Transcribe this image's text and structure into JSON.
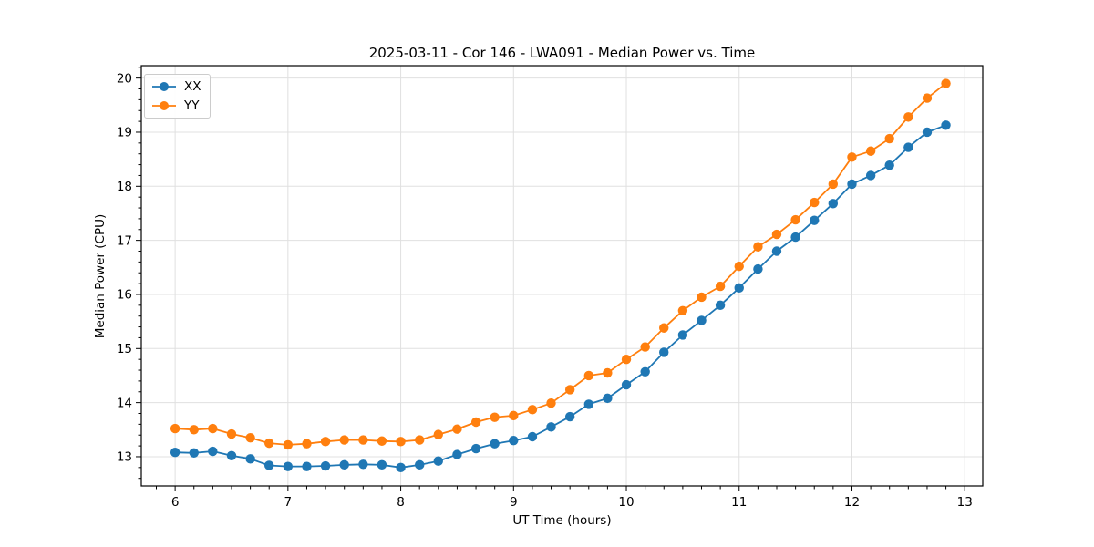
{
  "chart_data": {
    "type": "line",
    "title": "2025-03-11 - Cor 146 - LWA091 - Median Power vs. Time",
    "xlabel": "UT Time (hours)",
    "ylabel": "Median Power (CPU)",
    "xlim": [
      5.7,
      13.16
    ],
    "ylim": [
      12.46,
      20.23
    ],
    "x_major_ticks": [
      6,
      7,
      8,
      9,
      10,
      11,
      12,
      13
    ],
    "y_major_ticks": [
      13,
      14,
      15,
      16,
      17,
      18,
      19,
      20
    ],
    "x_minor_step": 0.1667,
    "y_minor_step": 0.2,
    "grid": true,
    "grid_color": "#e0e0e0",
    "legend_position": "upper-left",
    "marker": "circle",
    "x": [
      6.0,
      6.167,
      6.333,
      6.5,
      6.667,
      6.833,
      7.0,
      7.167,
      7.333,
      7.5,
      7.667,
      7.833,
      8.0,
      8.167,
      8.333,
      8.5,
      8.667,
      8.833,
      9.0,
      9.167,
      9.333,
      9.5,
      9.667,
      9.833,
      10.0,
      10.167,
      10.333,
      10.5,
      10.667,
      10.833,
      11.0,
      11.167,
      11.333,
      11.5,
      11.667,
      11.833,
      12.0,
      12.167,
      12.333,
      12.5,
      12.667,
      12.833
    ],
    "series": [
      {
        "name": "XX",
        "color": "#1f77b4",
        "values": [
          13.08,
          13.07,
          13.1,
          13.02,
          12.96,
          12.84,
          12.82,
          12.82,
          12.83,
          12.85,
          12.86,
          12.85,
          12.8,
          12.85,
          12.92,
          13.04,
          13.15,
          13.24,
          13.3,
          13.37,
          13.55,
          13.74,
          13.97,
          14.08,
          14.33,
          14.57,
          14.93,
          15.25,
          15.52,
          15.8,
          16.12,
          16.47,
          16.8,
          17.06,
          17.37,
          17.68,
          18.04,
          18.2,
          18.39,
          18.72,
          19.0,
          19.13
        ]
      },
      {
        "name": "YY",
        "color": "#ff7f0e",
        "values": [
          13.52,
          13.5,
          13.52,
          13.42,
          13.35,
          13.25,
          13.22,
          13.24,
          13.28,
          13.31,
          13.31,
          13.29,
          13.28,
          13.31,
          13.41,
          13.51,
          13.64,
          13.73,
          13.76,
          13.87,
          13.99,
          14.24,
          14.5,
          14.55,
          14.8,
          15.03,
          15.38,
          15.7,
          15.95,
          16.15,
          16.52,
          16.88,
          17.11,
          17.38,
          17.7,
          18.04,
          18.54,
          18.65,
          18.88,
          19.28,
          19.63,
          19.9
        ]
      }
    ]
  }
}
